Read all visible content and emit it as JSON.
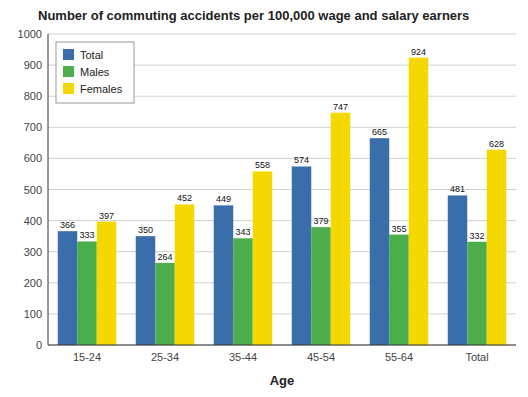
{
  "chart_data": {
    "type": "bar",
    "title": "Number of commuting accidents per 100,000 wage and salary earners",
    "xlabel": "Age",
    "categories": [
      "15-24",
      "25-34",
      "35-44",
      "45-54",
      "55-64",
      "Total"
    ],
    "series": [
      {
        "name": "Total",
        "color": "#3A6EAA",
        "values": [
          366,
          350,
          449,
          574,
          665,
          481
        ]
      },
      {
        "name": "Males",
        "color": "#4BAD4B",
        "values": [
          333,
          264,
          343,
          379,
          355,
          332
        ]
      },
      {
        "name": "Females",
        "color": "#F5D800",
        "values": [
          397,
          452,
          558,
          747,
          924,
          628
        ]
      }
    ],
    "ylim": [
      0,
      1000
    ],
    "yticks": [
      0,
      100,
      200,
      300,
      400,
      500,
      600,
      700,
      800,
      900,
      1000
    ],
    "grid": true,
    "legend": "upper left",
    "data_labels": true
  }
}
